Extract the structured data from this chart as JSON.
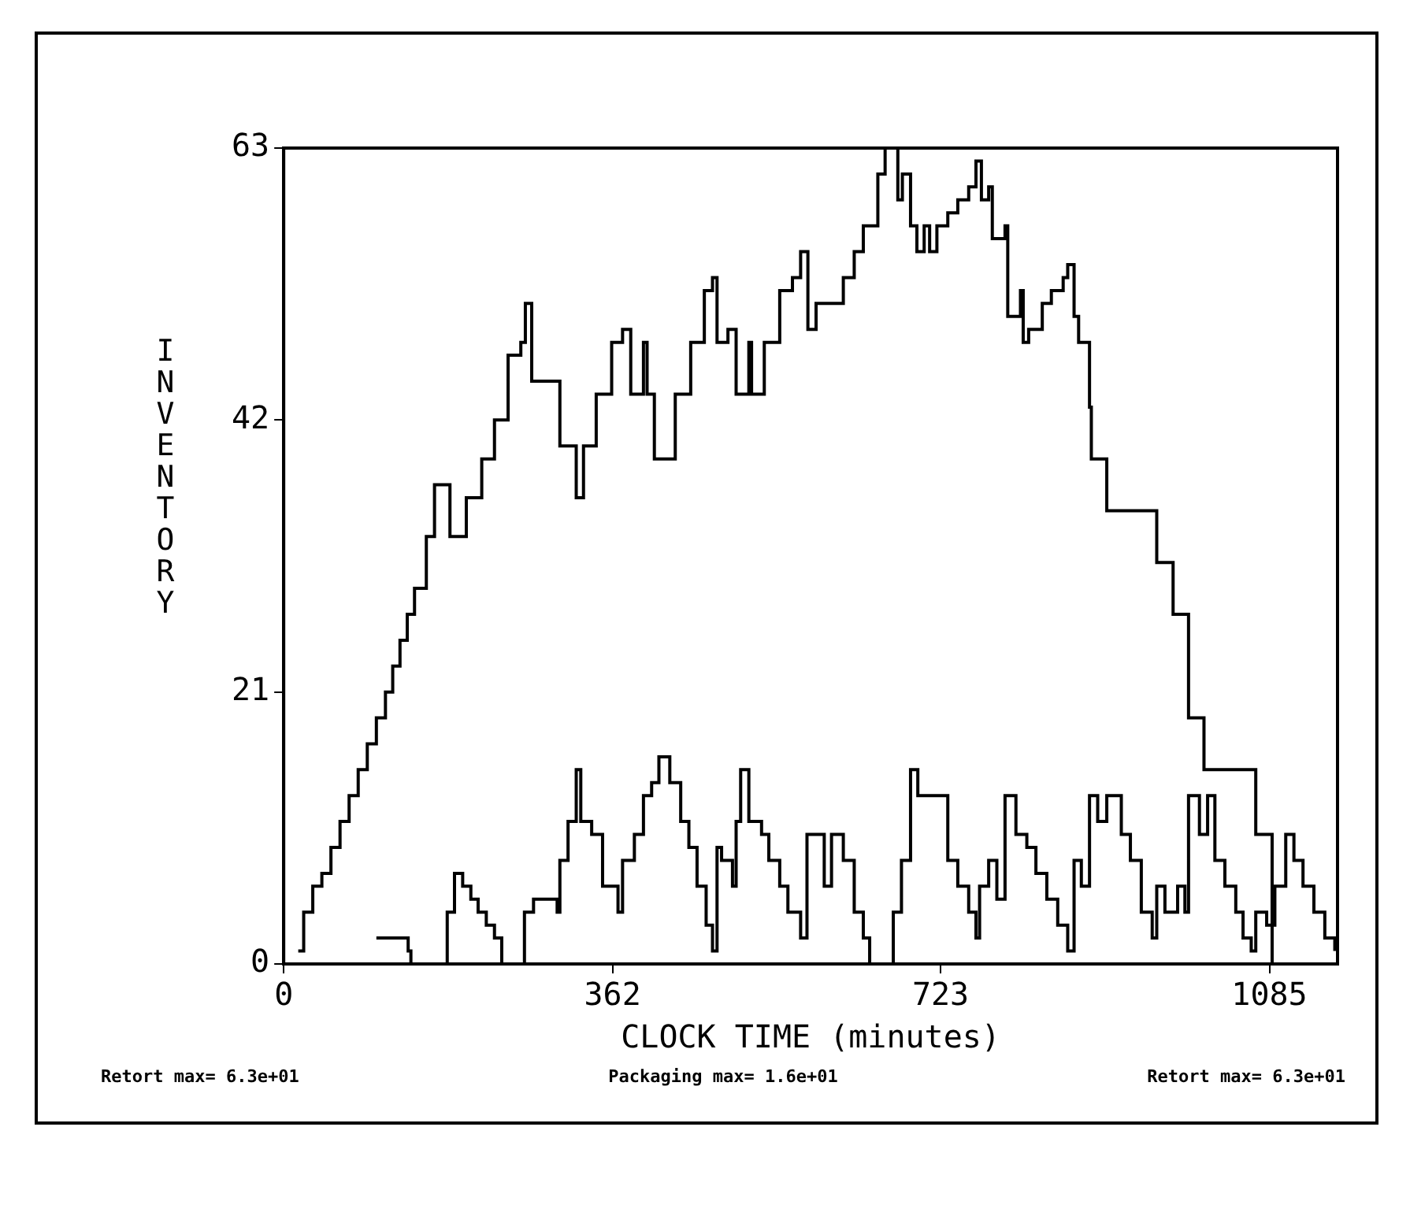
{
  "chart_data": {
    "type": "step",
    "xlabel": "CLOCK TIME (minutes)",
    "ylabel": "INVENTORY",
    "xlim": [
      0,
      1160
    ],
    "xticks": [
      0,
      362,
      723,
      1085
    ],
    "ylim": [
      0,
      63
    ],
    "yticks": [
      0,
      21,
      42,
      63
    ],
    "annotations": [
      "Retort max= 6.3e+01",
      "Packaging max= 1.6e+01",
      "Retort max= 6.3e+01"
    ],
    "series": [
      {
        "color": "#000000",
        "x": [
          16,
          22,
          32,
          42,
          52,
          62,
          72,
          82,
          92,
          102,
          112,
          120,
          128,
          136,
          144,
          157,
          166,
          183,
          201,
          218,
          232,
          247,
          261,
          266,
          273,
          304,
          322,
          330,
          344,
          361,
          373,
          382,
          396,
          400,
          408,
          431,
          448,
          463,
          472,
          477,
          489,
          498,
          512,
          515,
          529,
          546,
          560,
          569,
          577,
          586,
          616,
          628,
          638,
          654,
          662,
          676,
          681,
          690,
          697,
          705,
          711,
          719,
          731,
          742,
          754,
          762,
          768,
          776,
          780,
          794,
          797,
          811,
          814,
          820,
          835,
          845,
          858,
          863,
          870,
          875,
          887,
          889,
          906,
          961,
          979,
          996,
          1013,
          1070,
          1088
        ],
        "values": [
          1,
          4,
          6,
          7,
          9,
          11,
          13,
          15,
          17,
          19,
          21,
          23,
          25,
          27,
          29,
          33,
          37,
          33,
          36,
          39,
          42,
          47,
          48,
          51,
          45,
          40,
          36,
          40,
          44,
          48,
          49,
          44,
          48,
          44,
          39,
          44,
          48,
          52,
          53,
          48,
          49,
          44,
          48,
          44,
          48,
          52,
          53,
          55,
          49,
          51,
          53,
          55,
          57,
          61,
          63,
          59,
          61,
          57,
          55,
          57,
          55,
          57,
          58,
          59,
          60,
          62,
          59,
          60,
          56,
          57,
          50,
          52,
          48,
          49,
          51,
          52,
          53,
          54,
          50,
          48,
          43,
          39,
          35,
          31,
          27,
          19,
          15,
          10,
          0
        ]
      },
      {
        "color": "#000000",
        "x": [
          102,
          137,
          140,
          180,
          188,
          197,
          206,
          214,
          223,
          232,
          240,
          265,
          275,
          301,
          304,
          313,
          322,
          327,
          339,
          351,
          368,
          373,
          386,
          396,
          405,
          413,
          425,
          437,
          446,
          455,
          465,
          472,
          477,
          482,
          494,
          498,
          503,
          512,
          526,
          534,
          546,
          555,
          569,
          576,
          590,
          595,
          603,
          616,
          628,
          638,
          645,
          671,
          680,
          690,
          698,
          719,
          731,
          742,
          754,
          762,
          766,
          776,
          785,
          794,
          806,
          818,
          828,
          840,
          852,
          863,
          870,
          878,
          887,
          896,
          906,
          922,
          932,
          944,
          956,
          961,
          970,
          984,
          992,
          996,
          1008,
          1017,
          1025,
          1036,
          1048,
          1056,
          1065,
          1070,
          1082,
          1091,
          1103,
          1112,
          1122,
          1134,
          1146,
          1157
        ],
        "values": [
          2,
          1,
          0,
          4,
          7,
          6,
          5,
          4,
          3,
          2,
          0,
          4,
          5,
          4,
          8,
          11,
          15,
          11,
          10,
          6,
          4,
          8,
          10,
          13,
          14,
          16,
          14,
          11,
          9,
          6,
          3,
          1,
          9,
          8,
          6,
          11,
          15,
          11,
          10,
          8,
          6,
          4,
          2,
          10,
          10,
          6,
          10,
          8,
          4,
          2,
          0,
          4,
          8,
          15,
          13,
          13,
          8,
          6,
          4,
          2,
          6,
          8,
          5,
          13,
          10,
          9,
          7,
          5,
          3,
          1,
          8,
          6,
          13,
          11,
          13,
          10,
          8,
          4,
          2,
          6,
          4,
          6,
          4,
          13,
          10,
          13,
          8,
          6,
          4,
          2,
          1,
          4,
          3,
          6,
          10,
          8,
          6,
          4,
          2,
          1
        ]
      }
    ]
  }
}
